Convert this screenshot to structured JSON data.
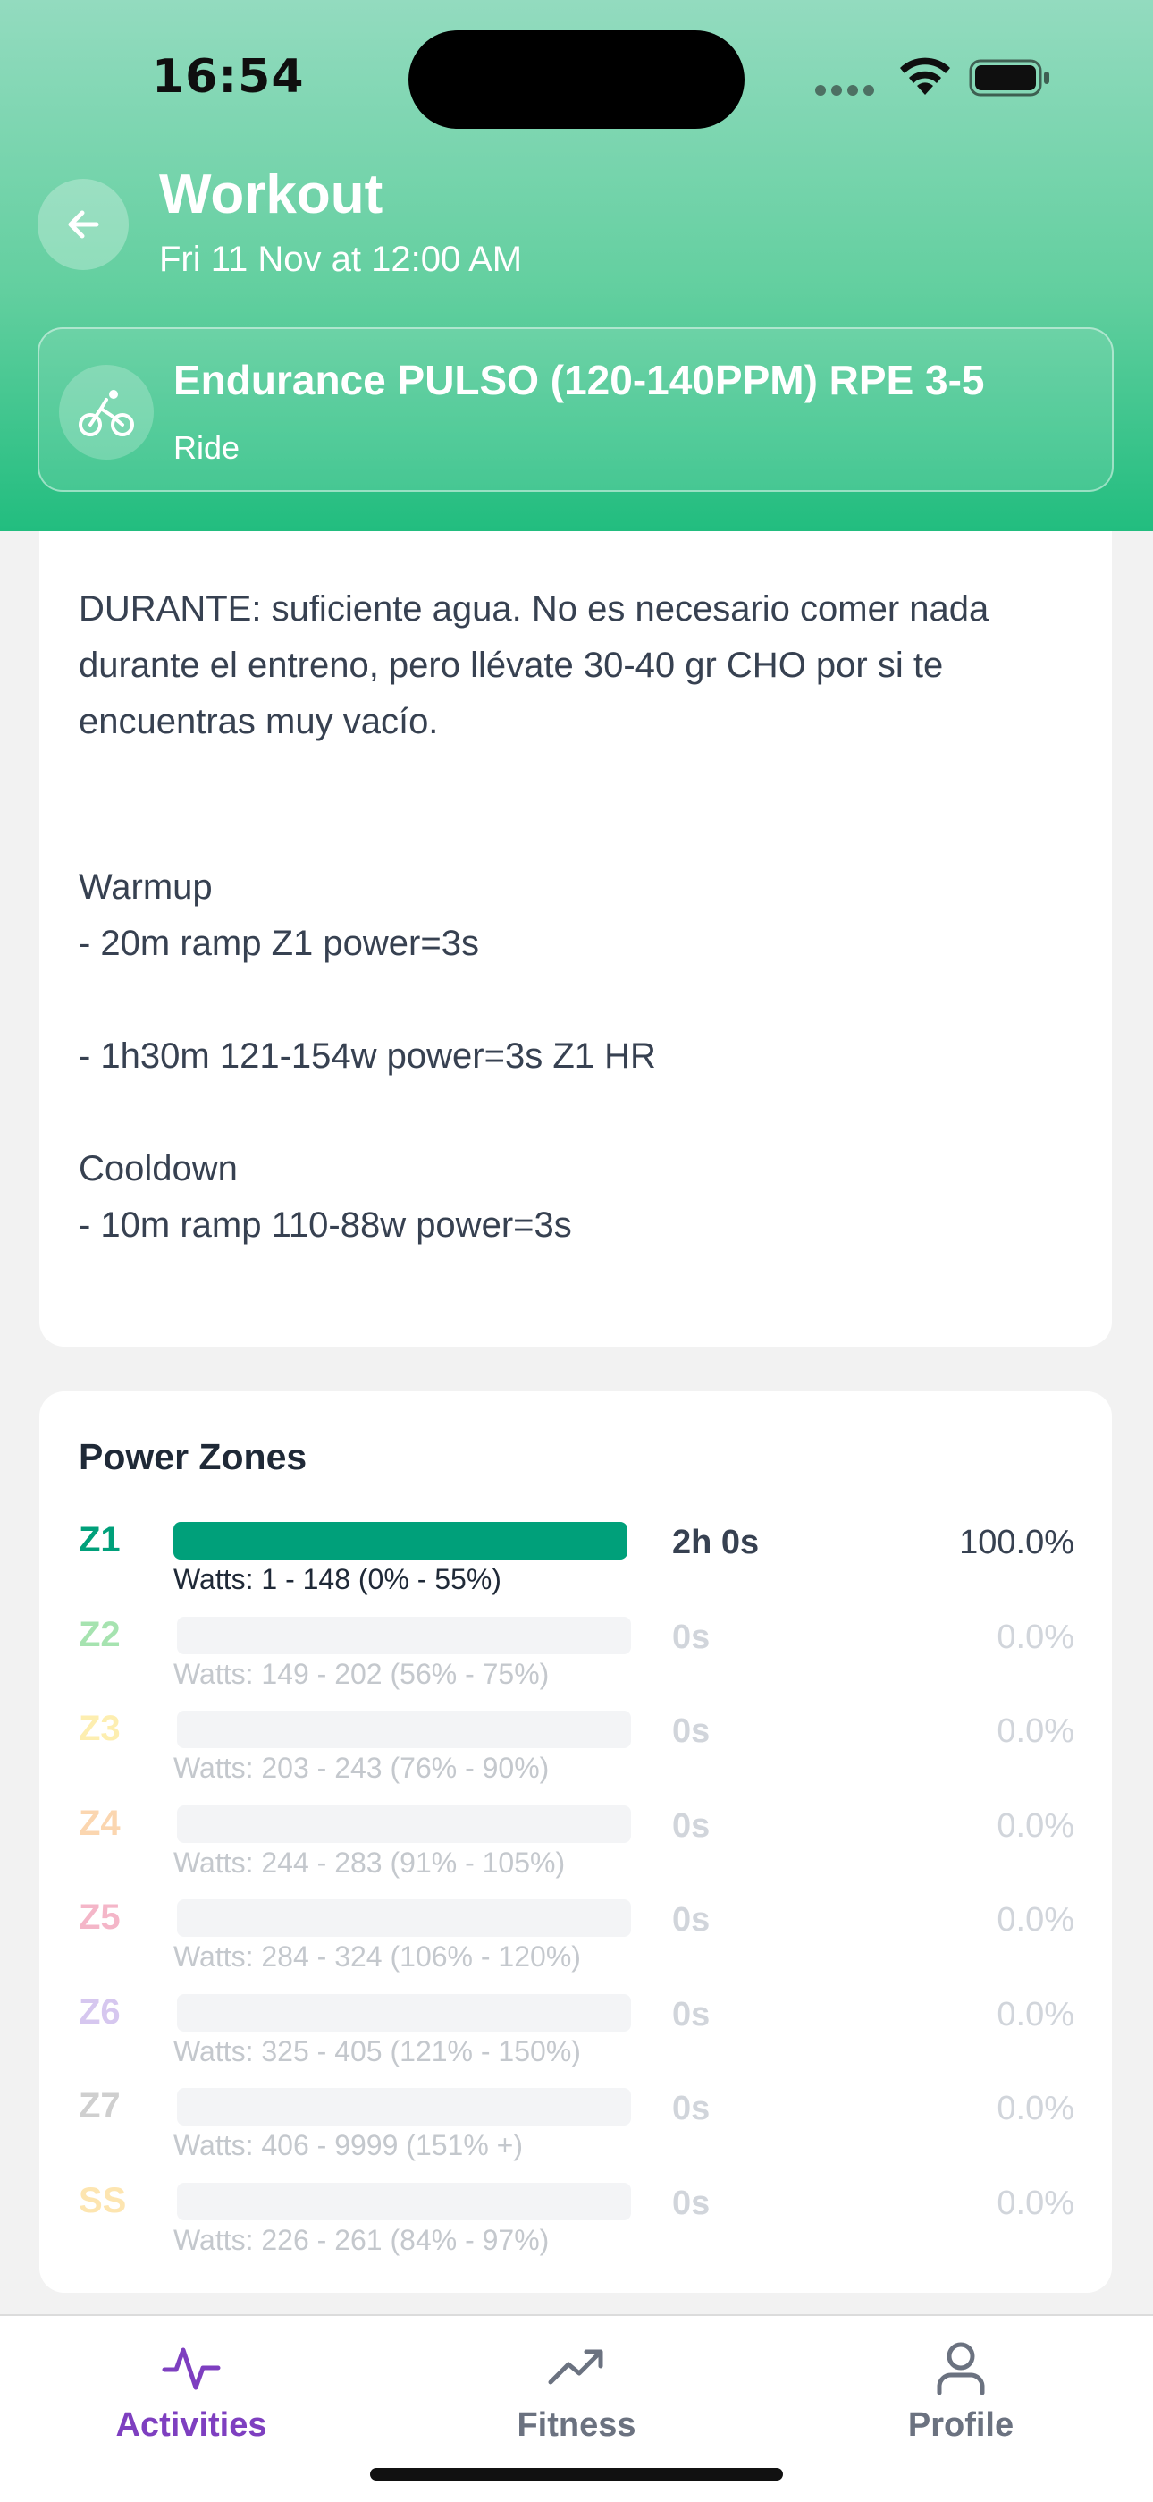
{
  "status_bar": {
    "time": "16:54"
  },
  "header": {
    "title": "Workout",
    "subtitle": "Fri 11 Nov at 12:00 AM"
  },
  "activity": {
    "name": "Endurance PULSO (120-140PPM) RPE 3-5",
    "type": "Ride",
    "icon": "bicycle-icon"
  },
  "description": {
    "lines": [
      "DURANTE: suficiente agua. No es necesario comer nada durante el entreno, pero llévate 30-40 gr CHO por si te encuentras muy vacío.",
      "Warmup",
      "- 20m ramp Z1 power=3s",
      "- 1h30m 121-154w power=3s Z1 HR",
      "Cooldown",
      "- 10m ramp 110-88w power=3s"
    ]
  },
  "power_zones": {
    "title": "Power Zones",
    "zones": [
      {
        "label": "Z1",
        "watts": "Watts: 1 - 148 (0% - 55%)",
        "time": "2h 0s",
        "percent": "100.0%",
        "fraction": 1.0,
        "color": "#00a07a"
      },
      {
        "label": "Z2",
        "watts": "Watts: 149 - 202 (56% - 75%)",
        "time": "0s",
        "percent": "0.0%",
        "fraction": 0.0,
        "color": "#a6e3b0"
      },
      {
        "label": "Z3",
        "watts": "Watts: 203 - 243 (76% - 90%)",
        "time": "0s",
        "percent": "0.0%",
        "fraction": 0.0,
        "color": "#fdeeb0"
      },
      {
        "label": "Z4",
        "watts": "Watts: 244 - 283 (91% - 105%)",
        "time": "0s",
        "percent": "0.0%",
        "fraction": 0.0,
        "color": "#fbd6b0"
      },
      {
        "label": "Z5",
        "watts": "Watts: 284 - 324 (106% - 120%)",
        "time": "0s",
        "percent": "0.0%",
        "fraction": 0.0,
        "color": "#f4b6c8"
      },
      {
        "label": "Z6",
        "watts": "Watts: 325 - 405 (121% - 150%)",
        "time": "0s",
        "percent": "0.0%",
        "fraction": 0.0,
        "color": "#d6c7ef"
      },
      {
        "label": "Z7",
        "watts": "Watts: 406 - 9999 (151% +)",
        "time": "0s",
        "percent": "0.0%",
        "fraction": 0.0,
        "color": "#cfcfcf"
      },
      {
        "label": "SS",
        "watts": "Watts: 226 - 261 (84% - 97%)",
        "time": "0s",
        "percent": "0.0%",
        "fraction": 0.0,
        "color": "#fde5b0"
      }
    ]
  },
  "bottom_nav": {
    "items": [
      {
        "label": "Activities",
        "icon": "activity-pulse-icon",
        "active": true
      },
      {
        "label": "Fitness",
        "icon": "trending-up-icon",
        "active": false
      },
      {
        "label": "Profile",
        "icon": "user-icon",
        "active": false
      }
    ],
    "active_color": "#7e3fc0",
    "inactive_color": "#6b7280"
  }
}
